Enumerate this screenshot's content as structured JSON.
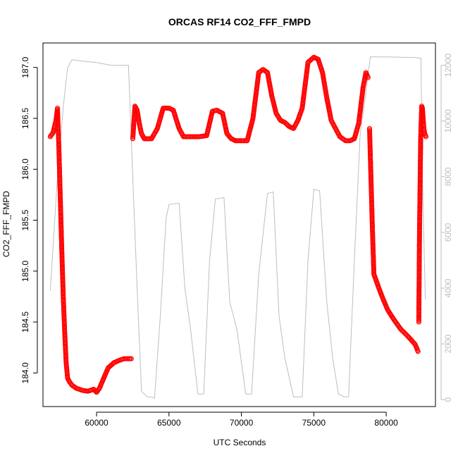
{
  "chart_data": {
    "type": "line",
    "title": "ORCAS RF14 CO2_FFF_FMPD",
    "xlabel": "UTC Seconds",
    "ylabel": "CO2_FFF_FMPD",
    "xlim": [
      56300,
      83400
    ],
    "ylim": [
      183.67,
      187.24
    ],
    "y2lim": [
      -250,
      12800
    ],
    "x_ticks": [
      60000,
      65000,
      70000,
      75000,
      80000
    ],
    "x_tick_labels": [
      "60000",
      "65000",
      "70000",
      "75000",
      "80000"
    ],
    "y_ticks": [
      184.0,
      184.5,
      185.0,
      185.5,
      186.0,
      186.5,
      187.0
    ],
    "y_tick_labels": [
      "184.0",
      "184.5",
      "185.0",
      "185.5",
      "186.0",
      "186.5",
      "187.0"
    ],
    "y2_ticks": [
      0,
      2000,
      4000,
      6000,
      8000,
      10000,
      12000
    ],
    "y2_tick_labels": [
      "0",
      "2000",
      "4000",
      "6000",
      "8000",
      "10000",
      "12000"
    ],
    "grid": false,
    "legend": "none",
    "series": [
      {
        "role": "co2",
        "axis": "left",
        "style": "points-dashed",
        "color": "#ff0000",
        "segments": [
          {
            "x": [
              56800,
              57000,
              57200,
              57300,
              57400,
              57500,
              57600,
              57700,
              57800,
              57900,
              58000,
              58100,
              58300,
              58600,
              59000,
              59400,
              59800,
              60000,
              60200,
              60500,
              60800,
              61200,
              61500,
              61900,
              62200,
              62400
            ],
            "y": [
              186.32,
              186.36,
              186.48,
              186.6,
              186.2,
              185.7,
              185.2,
              184.75,
              184.4,
              184.1,
              183.95,
              183.92,
              183.88,
              183.85,
              183.83,
              183.82,
              183.84,
              183.81,
              183.85,
              183.95,
              184.05,
              184.1,
              184.12,
              184.14,
              184.14,
              184.14
            ]
          },
          {
            "x": [
              62500,
              62650,
              62800,
              62950,
              63100,
              63300,
              63500,
              63800,
              64200,
              64600,
              65000,
              65300,
              65700,
              66000,
              66300,
              66700,
              67100,
              67600,
              68000,
              68300,
              68700,
              69000,
              69300,
              69600,
              70000,
              70400,
              70800,
              71200,
              71500,
              71800,
              72100,
              72400,
              72700,
              73000,
              73300,
              73600,
              73900,
              74200,
              74600,
              75000,
              75300,
              75600,
              75900,
              76200,
              76500,
              76800,
              77200,
              77500,
              77800,
              78100,
              78400,
              78600,
              78750
            ],
            "y": [
              186.3,
              186.62,
              186.58,
              186.45,
              186.35,
              186.3,
              186.3,
              186.3,
              186.4,
              186.6,
              186.6,
              186.58,
              186.4,
              186.32,
              186.32,
              186.32,
              186.32,
              186.33,
              186.57,
              186.58,
              186.55,
              186.35,
              186.3,
              186.28,
              186.28,
              186.28,
              186.5,
              186.95,
              186.98,
              186.95,
              186.72,
              186.55,
              186.48,
              186.46,
              186.42,
              186.4,
              186.48,
              186.6,
              187.05,
              187.1,
              187.08,
              186.95,
              186.7,
              186.48,
              186.4,
              186.32,
              186.28,
              186.28,
              186.3,
              186.45,
              186.8,
              186.95,
              186.9
            ]
          },
          {
            "x": [
              78850,
              78950,
              79050,
              79150,
              79250,
              79500,
              79800,
              80100,
              80500,
              81000,
              81500,
              82000,
              82200
            ],
            "y": [
              186.4,
              185.9,
              185.4,
              184.97,
              184.93,
              184.83,
              184.72,
              184.62,
              184.53,
              184.43,
              184.36,
              184.28,
              184.21
            ]
          },
          {
            "x": [
              82250,
              82300,
              82380,
              82450,
              82500,
              82550,
              82600,
              82650,
              82750
            ],
            "y": [
              184.5,
              185.4,
              186.3,
              186.62,
              186.6,
              186.5,
              186.4,
              186.35,
              186.32
            ]
          }
        ]
      },
      {
        "role": "altitude",
        "axis": "right",
        "style": "line",
        "color": "#bebebe",
        "x": [
          56800,
          57300,
          57700,
          58000,
          58300,
          59000,
          60000,
          61000,
          62200,
          62500,
          62800,
          63100,
          63500,
          63700,
          64000,
          64400,
          64800,
          65000,
          65700,
          66100,
          66500,
          67000,
          67400,
          67800,
          68200,
          68800,
          69200,
          69700,
          70300,
          70700,
          71200,
          71800,
          72200,
          72600,
          73000,
          73600,
          73900,
          74200,
          74600,
          75000,
          75400,
          75900,
          76300,
          76700,
          77100,
          77400,
          77800,
          78200,
          78600,
          78900,
          79200,
          79300,
          79500,
          80000,
          81000,
          82000,
          82400,
          82500,
          82700
        ],
        "y": [
          3900,
          8000,
          10500,
          11900,
          12200,
          12150,
          12100,
          12000,
          12000,
          8000,
          4000,
          300,
          100,
          100,
          50,
          3000,
          6500,
          7000,
          7050,
          4000,
          2500,
          200,
          200,
          5000,
          7200,
          7250,
          3500,
          2500,
          200,
          200,
          4500,
          7400,
          7450,
          3000,
          1500,
          100,
          100,
          100,
          5000,
          7550,
          7500,
          3500,
          1500,
          200,
          100,
          100,
          5000,
          9500,
          11000,
          12300,
          12300,
          12300,
          12300,
          12300,
          12290,
          12280,
          12250,
          8000,
          3600
        ]
      }
    ]
  }
}
